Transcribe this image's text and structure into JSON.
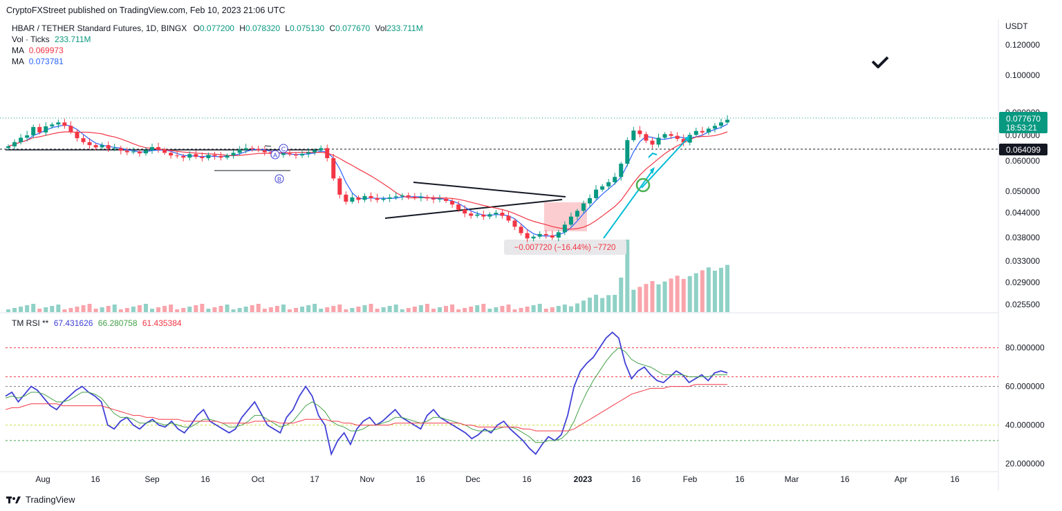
{
  "publisher": "CryptoFXStreet published on TradingView.com, Feb 10, 2023 21:06 UTC",
  "footer": {
    "brand": "TradingView"
  },
  "legend": {
    "symbol": "HBAR / TETHER Standard Futures, 1D, BINGX",
    "o_label": "O",
    "o": "0.077200",
    "h_label": "H",
    "h": "0.078320",
    "l_label": "L",
    "l": "0.075130",
    "c_label": "C",
    "c": "0.077670",
    "vol_label": "Vol",
    "vol": "233.711M",
    "vol_ticks_label": "Vol · Ticks",
    "vol_ticks": "233.711M",
    "ma1_label": "MA",
    "ma1": "0.069973",
    "ma2_label": "MA",
    "ma2": "0.073781"
  },
  "rsi_legend": {
    "label": "TM RSI **",
    "v1": "67.431626",
    "v2": "66.280758",
    "v3": "61.435384"
  },
  "chart_data": [
    {
      "type": "candlestick",
      "axis_unit": "USDT",
      "y_ticks": [
        "0.120000",
        "0.100000",
        "0.080000",
        "0.070000",
        "0.060000",
        "0.050000",
        "0.044000",
        "0.038000",
        "0.033000",
        "0.029000",
        "0.025500"
      ],
      "last_price": "0.077670",
      "countdown": "18:53:21",
      "level_label": "0.064099",
      "measure_label": "−0.007720 (−16.44%) −7720",
      "pattern_labels": [
        "A",
        "B",
        "C"
      ],
      "x_ticks": [
        "Aug",
        "16",
        "Sep",
        "16",
        "Oct",
        "17",
        "Nov",
        "16",
        "Dec",
        "16",
        "2023",
        "16",
        "Feb",
        "16",
        "Mar",
        "16",
        "Apr",
        "16"
      ],
      "colors": {
        "up": "#089981",
        "down": "#f23645",
        "ma_fast": "#2962ff",
        "ma_slow": "#f23645",
        "annotation": "#00bcd4"
      },
      "trend_path": [
        0.0655,
        0.0672,
        0.069,
        0.07,
        0.0735,
        0.0712,
        0.0738,
        0.0746,
        0.0755,
        0.074,
        0.0715,
        0.0688,
        0.0672,
        0.066,
        0.0651,
        0.066,
        0.0646,
        0.0648,
        0.0638,
        0.0632,
        0.0635,
        0.0628,
        0.064,
        0.0652,
        0.0641,
        0.063,
        0.062,
        0.0618,
        0.0612,
        0.0625,
        0.0615,
        0.061,
        0.0622,
        0.0618,
        0.0612,
        0.062,
        0.063,
        0.0642,
        0.0648,
        0.0645,
        0.064,
        0.0632,
        0.0626,
        0.0622,
        0.0628,
        0.0624,
        0.062,
        0.0626,
        0.0632,
        0.064,
        0.0648,
        0.061,
        0.054,
        0.049,
        0.047,
        0.0482,
        0.0475,
        0.0486,
        0.048,
        0.0475,
        0.0478,
        0.0482,
        0.0485,
        0.0488,
        0.0484,
        0.048,
        0.0483,
        0.0479,
        0.0476,
        0.0478,
        0.0472,
        0.0462,
        0.0448,
        0.0438,
        0.0432,
        0.0435,
        0.043,
        0.0436,
        0.044,
        0.0432,
        0.042,
        0.0405,
        0.039,
        0.0378,
        0.0382,
        0.0388,
        0.0385,
        0.038,
        0.0392,
        0.041,
        0.043,
        0.0445,
        0.0465,
        0.048,
        0.0505,
        0.0515,
        0.0528,
        0.0545,
        0.059,
        0.068,
        0.072,
        0.0705,
        0.0678,
        0.0662,
        0.069,
        0.0705,
        0.0698,
        0.0685,
        0.067,
        0.0702,
        0.0718,
        0.0712,
        0.0728,
        0.074,
        0.0755,
        0.0767
      ]
    },
    {
      "type": "line",
      "title": "TM RSI **",
      "y_ticks": [
        "80.000000",
        "60.000000",
        "40.000000",
        "20.000000"
      ],
      "ylim": [
        17,
        92
      ],
      "levels": [
        80,
        65,
        60,
        40,
        32
      ],
      "series": [
        {
          "color": "#3f3fd6",
          "values": [
            55,
            57,
            52,
            56,
            60,
            58,
            54,
            50,
            48,
            52,
            55,
            58,
            60,
            57,
            55,
            52,
            40,
            38,
            42,
            44,
            40,
            38,
            41,
            43,
            40,
            39,
            42,
            38,
            36,
            40,
            45,
            48,
            42,
            40,
            38,
            36,
            38,
            44,
            48,
            52,
            46,
            40,
            38,
            36,
            44,
            48,
            55,
            60,
            55,
            45,
            40,
            25,
            32,
            36,
            30,
            38,
            42,
            44,
            40,
            42,
            45,
            48,
            44,
            42,
            40,
            38,
            45,
            48,
            44,
            42,
            40,
            38,
            36,
            33,
            35,
            38,
            36,
            40,
            42,
            38,
            35,
            32,
            28,
            25,
            30,
            34,
            32,
            35,
            45,
            60,
            68,
            72,
            75,
            80,
            85,
            88,
            85,
            72,
            64,
            68,
            70,
            66,
            63,
            62,
            65,
            68,
            66,
            62,
            64,
            66,
            63,
            67,
            68,
            67
          ]
        },
        {
          "color": "#43a047",
          "values": [
            54,
            55,
            54,
            55,
            57,
            57,
            56,
            54,
            52,
            52,
            53,
            55,
            57,
            57,
            56,
            54,
            50,
            46,
            44,
            44,
            43,
            41,
            41,
            42,
            41,
            40,
            41,
            40,
            39,
            39,
            41,
            43,
            43,
            42,
            41,
            39,
            39,
            40,
            42,
            45,
            45,
            43,
            41,
            39,
            40,
            42,
            46,
            50,
            52,
            50,
            47,
            42,
            40,
            39,
            37,
            37,
            38,
            40,
            40,
            41,
            42,
            44,
            44,
            43,
            42,
            41,
            42,
            44,
            44,
            43,
            42,
            41,
            40,
            38,
            37,
            37,
            37,
            38,
            39,
            39,
            38,
            36,
            34,
            31,
            31,
            32,
            32,
            33,
            36,
            42,
            50,
            57,
            63,
            68,
            73,
            77,
            80,
            78,
            74,
            72,
            71,
            70,
            68,
            66,
            66,
            66,
            66,
            65,
            65,
            65,
            65,
            66,
            66,
            66
          ]
        },
        {
          "color": "#f23645",
          "values": [
            48,
            49,
            49,
            50,
            51,
            51,
            51,
            51,
            51,
            50,
            50,
            50,
            50,
            50,
            50,
            50,
            49,
            48,
            47,
            46,
            45,
            45,
            44,
            44,
            43,
            43,
            43,
            43,
            42,
            42,
            42,
            42,
            42,
            42,
            41,
            41,
            41,
            41,
            41,
            42,
            42,
            42,
            42,
            41,
            41,
            41,
            42,
            43,
            43,
            43,
            43,
            42,
            42,
            41,
            41,
            40,
            40,
            40,
            40,
            40,
            40,
            41,
            41,
            41,
            41,
            41,
            41,
            41,
            41,
            41,
            41,
            41,
            40,
            40,
            39,
            39,
            39,
            39,
            39,
            39,
            39,
            38,
            38,
            37,
            37,
            37,
            37,
            37,
            37,
            38,
            40,
            42,
            44,
            46,
            48,
            50,
            52,
            54,
            56,
            57,
            58,
            59,
            59,
            59,
            60,
            60,
            60,
            60,
            61,
            61,
            61,
            61,
            61,
            61
          ]
        }
      ]
    }
  ]
}
